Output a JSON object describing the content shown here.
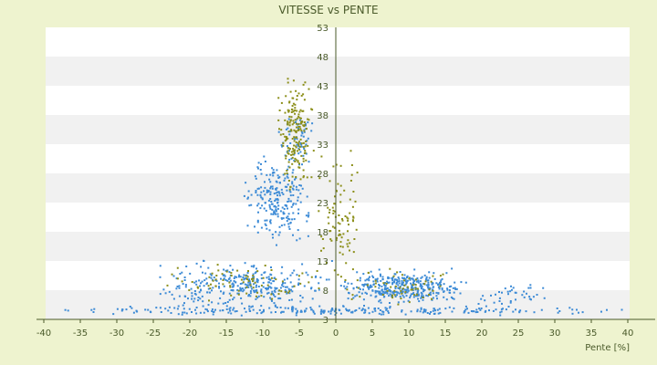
{
  "chart_data": {
    "type": "scatter",
    "title": "VITESSE vs PENTE",
    "xlabel": "Pente [%]",
    "ylabel": "",
    "xlim": [
      -40,
      42
    ],
    "ylim": [
      3,
      53
    ],
    "x_ticks": [
      "-40",
      "-35",
      "-30",
      "-25",
      "-20",
      "-15",
      "-10",
      "-5",
      "0",
      "5",
      "10",
      "15",
      "20",
      "25",
      "30",
      "35",
      "40"
    ],
    "y_ticks": [
      "3",
      "8",
      "13",
      "18",
      "23",
      "28",
      "33",
      "38",
      "43",
      "48",
      "53"
    ],
    "grid": "horizontal bands",
    "legend": "none",
    "colors": {
      "background": "#eef3cf",
      "plot_band_light": "#ffffff",
      "plot_band_dark": "#f1f1f1",
      "series_blue": "#3d8bd6",
      "series_olive": "#8c8f1a",
      "axis": "#4a5a2a"
    },
    "series": [
      {
        "color": "#3d8bd6",
        "clusters": [
          {
            "x": [
              -40,
              40
            ],
            "y": [
              3.5,
              5.5
            ],
            "n": 260
          },
          {
            "x": [
              -25,
              0
            ],
            "y": [
              4,
              14
            ],
            "n": 320
          },
          {
            "x": [
              0,
              18
            ],
            "y": [
              5,
              12
            ],
            "n": 380
          },
          {
            "x": [
              -13,
              -3
            ],
            "y": [
              14,
              33
            ],
            "n": 230
          },
          {
            "x": [
              -8,
              -2
            ],
            "y": [
              28,
              40
            ],
            "n": 60
          },
          {
            "x": [
              18,
              30
            ],
            "y": [
              4,
              10
            ],
            "n": 40
          }
        ]
      },
      {
        "color": "#8c8f1a",
        "clusters": [
          {
            "x": [
              -8,
              -3
            ],
            "y": [
              22,
              48
            ],
            "n": 180
          },
          {
            "x": [
              -3,
              4
            ],
            "y": [
              6,
              35
            ],
            "n": 90
          },
          {
            "x": [
              -25,
              0
            ],
            "y": [
              5,
              14
            ],
            "n": 80
          },
          {
            "x": [
              0,
              18
            ],
            "y": [
              5,
              12
            ],
            "n": 60
          }
        ]
      }
    ]
  }
}
